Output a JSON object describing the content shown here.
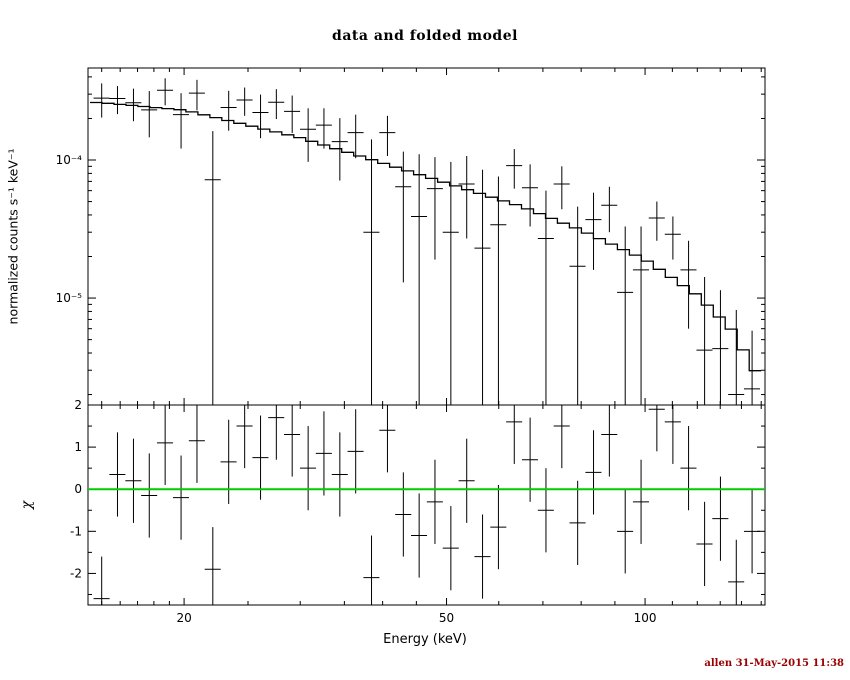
{
  "page": {
    "background": "#ffffff",
    "footer": {
      "text": "allen 31-May-2015 11:38",
      "color": "#990000"
    }
  },
  "chart_data": {
    "type": "scatter",
    "subtype": "xspec-spectrum-with-residuals",
    "title": "data and folded model",
    "xlabel": "Energy (keV)",
    "ylabel_top": "normalized counts s⁻¹ keV⁻¹",
    "ylabel_bottom": "χ",
    "x_scale": "log",
    "x_range": [
      14.3,
      152
    ],
    "x_major_ticks": [
      {
        "value": 20,
        "label": "20"
      },
      {
        "value": 50,
        "label": "50"
      },
      {
        "value": 100,
        "label": "100"
      }
    ],
    "x_minor_ticks": [
      15,
      16,
      17,
      18,
      19,
      25,
      30,
      35,
      40,
      45,
      60,
      70,
      80,
      90,
      110,
      120,
      130,
      140,
      150
    ],
    "top_panel": {
      "y_scale": "log",
      "y_range": [
        1.68e-06,
        0.000464
      ],
      "y_major_ticks": [
        {
          "value": 0.0001,
          "label": "10⁻⁴"
        },
        {
          "value": 1e-05,
          "label": "10⁻⁵"
        }
      ],
      "y_minor_ticks": [
        2e-06,
        3e-06,
        4e-06,
        5e-06,
        6e-06,
        7e-06,
        8e-06,
        9e-06,
        2e-05,
        3e-05,
        4e-05,
        5e-05,
        6e-05,
        7e-05,
        8e-05,
        9e-05,
        0.0002,
        0.0003,
        0.0004
      ]
    },
    "bottom_panel": {
      "y_scale": "linear",
      "y_range": [
        -2.75,
        2.0
      ],
      "y_major_ticks": [
        {
          "value": -2,
          "label": "-2"
        },
        {
          "value": -1,
          "label": "-1"
        },
        {
          "value": 0,
          "label": "0"
        },
        {
          "value": 1,
          "label": "1"
        },
        {
          "value": 2,
          "label": "2"
        }
      ],
      "y_minor_ticks": [
        -2.5,
        -1.5,
        -0.5,
        0.5,
        1.5
      ],
      "zero_line_color": "#00cc00"
    },
    "model_anchors": [
      [
        14.4,
        0.000262
      ],
      [
        15,
        0.00026
      ],
      [
        20,
        0.00023
      ],
      [
        30,
        0.000145
      ],
      [
        40,
        9.5e-05
      ],
      [
        50,
        6.8e-05
      ],
      [
        65,
        4.6e-05
      ],
      [
        80,
        3.1e-05
      ],
      [
        100,
        1.9e-05
      ],
      [
        120,
        1.05e-05
      ],
      [
        135,
        6e-06
      ],
      [
        150,
        2.5e-06
      ]
    ],
    "model_bins": {
      "e_min": 14.4,
      "e_max": 150,
      "count": 56
    },
    "bin_half_width_frac": 0.028,
    "data_points": {
      "e": [
        15.0,
        15.85,
        16.76,
        17.71,
        18.72,
        19.79,
        20.92,
        22.11,
        23.37,
        24.71,
        26.12,
        27.6,
        29.17,
        30.84,
        32.59,
        34.45,
        36.41,
        38.48,
        40.68,
        43.0,
        45.44,
        48.02,
        50.76,
        53.65,
        56.7,
        59.93,
        63.34,
        66.94,
        70.75,
        74.78,
        79.03,
        83.53,
        88.28,
        93.3,
        98.61,
        104.2,
        110.2,
        116.4,
        123.1,
        130.1,
        137.5,
        145.3
      ],
      "y": [
        0.000281,
        0.000279,
        0.00026,
        0.000231,
        0.00032,
        0.000213,
        0.000305,
        7.2e-05,
        0.00024,
        0.000272,
        0.000221,
        0.000262,
        0.000225,
        0.000167,
        0.000179,
        0.000136,
        0.000158,
        3e-05,
        0.000158,
        6.4e-05,
        3.9e-05,
        6.2e-05,
        3e-05,
        6.7e-05,
        2.3e-05,
        3.4e-05,
        9.1e-05,
        6.3e-05,
        2.7e-05,
        6.7e-05,
        1.7e-05,
        3.7e-05,
        4.7e-05,
        1.1e-05,
        1.6e-05,
        3.8e-05,
        2.9e-05,
        1.6e-05,
        4.2e-06,
        4.3e-06,
        2e-06,
        2.2e-06
      ],
      "sigma": [
        7.8e-05,
        6.4e-05,
        6.9e-05,
        8.5e-05,
        7.1e-05,
        9.2e-05,
        7.6e-05,
        9e-05,
        7.7e-05,
        6.3e-05,
        7.7e-05,
        6.4e-05,
        6.8e-05,
        7e-05,
        5.8e-05,
        6.5e-05,
        5.5e-05,
        0.000111,
        5.1e-05,
        5.1e-05,
        7.1e-05,
        4.3e-05,
        6.7e-05,
        4e-05,
        6.2e-05,
        4.2e-05,
        2.9e-05,
        3e-05,
        3.3e-05,
        2.3e-05,
        2.9e-05,
        2.1e-05,
        1.7e-05,
        2.2e-05,
        1.7e-05,
        1.2e-05,
        1e-05,
        1e-05,
        1e-05,
        7.1e-06,
        6.2e-06,
        3.6e-06
      ]
    },
    "residuals": {
      "chi": [
        -2.6,
        0.35,
        0.2,
        -0.15,
        1.1,
        -0.2,
        1.15,
        -1.9,
        0.65,
        1.5,
        0.75,
        1.7,
        1.3,
        0.5,
        0.85,
        0.35,
        0.9,
        -2.1,
        1.4,
        -0.6,
        -1.1,
        -0.3,
        -1.4,
        0.2,
        -1.6,
        -0.9,
        1.6,
        0.7,
        -0.5,
        1.5,
        -0.8,
        0.4,
        1.3,
        -1.0,
        -0.3,
        1.9,
        1.6,
        0.5,
        -1.3,
        -0.7,
        -2.2,
        -1.0
      ],
      "err": 1.0
    }
  }
}
